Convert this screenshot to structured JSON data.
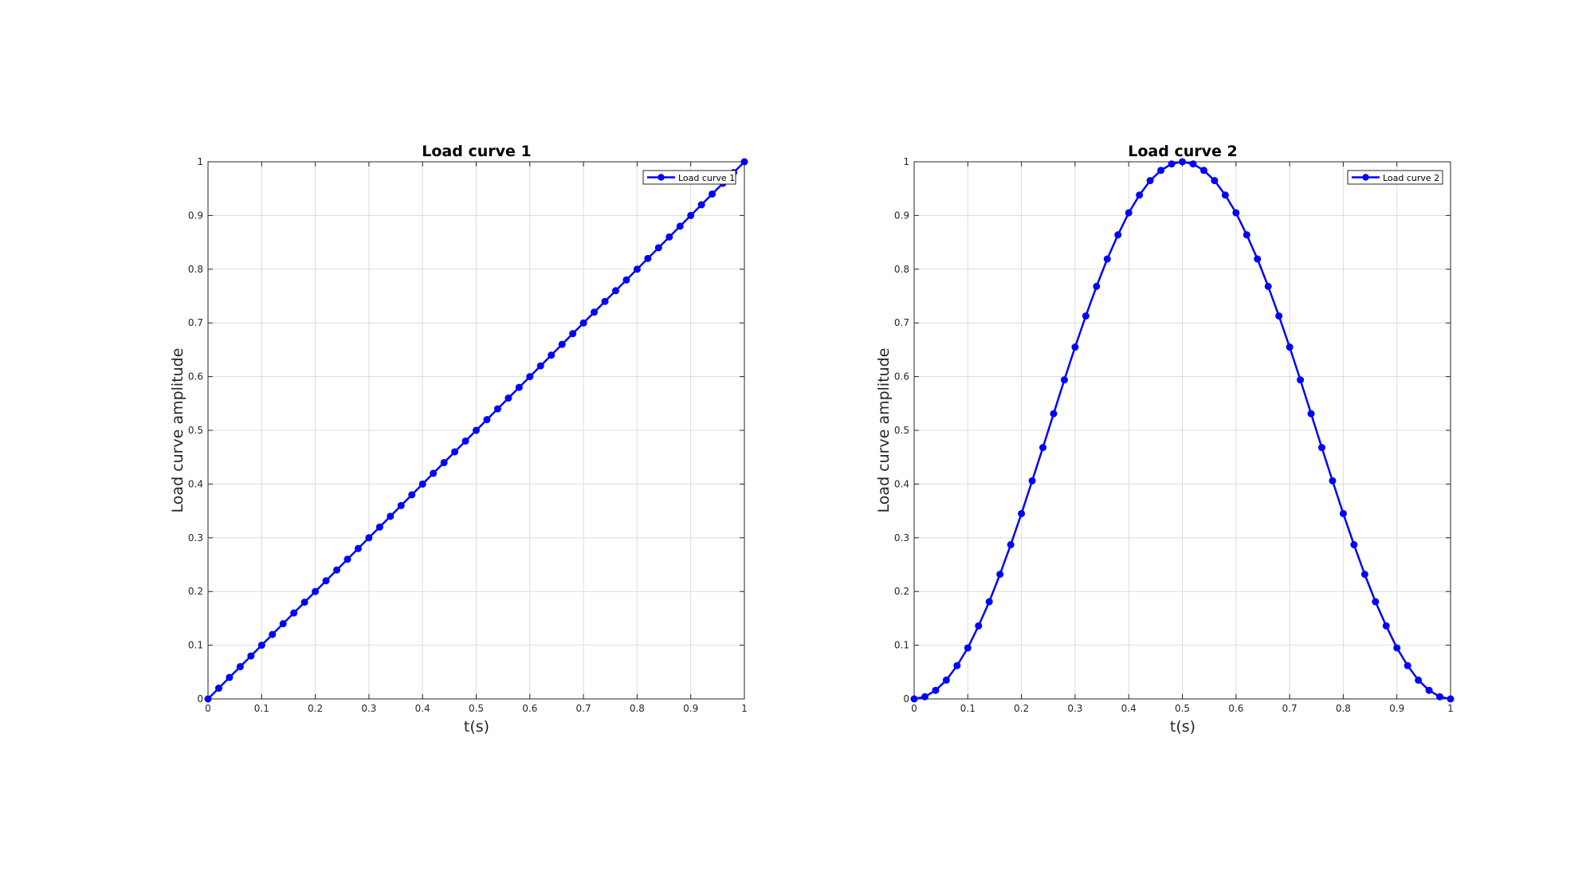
{
  "chart_data": [
    {
      "type": "line",
      "title": "Load curve 1",
      "xlabel": "t(s)",
      "ylabel": "Load curve amplitude",
      "xlim": [
        0,
        1
      ],
      "ylim": [
        0,
        1
      ],
      "xticks": [
        "0",
        "0.1",
        "0.2",
        "0.3",
        "0.4",
        "0.5",
        "0.6",
        "0.7",
        "0.8",
        "0.9",
        "1"
      ],
      "yticks": [
        "0",
        "0.1",
        "0.2",
        "0.3",
        "0.4",
        "0.5",
        "0.6",
        "0.7",
        "0.8",
        "0.9",
        "1"
      ],
      "grid": true,
      "legend_position": "top-right",
      "series": [
        {
          "name": "Load curve 1",
          "color": "#0000ff",
          "marker": "circle",
          "x": [
            0,
            0.02,
            0.04,
            0.06,
            0.08,
            0.1,
            0.12,
            0.14,
            0.16,
            0.18,
            0.2,
            0.22,
            0.24,
            0.26,
            0.28,
            0.3,
            0.32,
            0.34,
            0.36,
            0.38,
            0.4,
            0.42,
            0.44,
            0.46,
            0.48,
            0.5,
            0.52,
            0.54,
            0.56,
            0.58,
            0.6,
            0.62,
            0.64,
            0.66,
            0.68,
            0.7,
            0.72,
            0.74,
            0.76,
            0.78,
            0.8,
            0.82,
            0.84,
            0.86,
            0.88,
            0.9,
            0.92,
            0.94,
            0.96,
            0.98,
            1
          ],
          "y": [
            0,
            0.02,
            0.04,
            0.06,
            0.08,
            0.1,
            0.12,
            0.14,
            0.16,
            0.18,
            0.2,
            0.22,
            0.24,
            0.26,
            0.28,
            0.3,
            0.32,
            0.34,
            0.36,
            0.38,
            0.4,
            0.42,
            0.44,
            0.46,
            0.48,
            0.5,
            0.52,
            0.54,
            0.56,
            0.58,
            0.6,
            0.62,
            0.64,
            0.66,
            0.68,
            0.7,
            0.72,
            0.74,
            0.76,
            0.78,
            0.8,
            0.82,
            0.84,
            0.86,
            0.88,
            0.9,
            0.92,
            0.94,
            0.96,
            0.98,
            1
          ]
        }
      ]
    },
    {
      "type": "line",
      "title": "Load curve 2",
      "xlabel": "t(s)",
      "ylabel": "Load curve amplitude",
      "xlim": [
        0,
        1
      ],
      "ylim": [
        0,
        1
      ],
      "xticks": [
        "0",
        "0.1",
        "0.2",
        "0.3",
        "0.4",
        "0.5",
        "0.6",
        "0.7",
        "0.8",
        "0.9",
        "1"
      ],
      "yticks": [
        "0",
        "0.1",
        "0.2",
        "0.3",
        "0.4",
        "0.5",
        "0.6",
        "0.7",
        "0.8",
        "0.9",
        "1"
      ],
      "grid": true,
      "legend_position": "top-right",
      "series": [
        {
          "name": "Load curve 2",
          "color": "#0000ff",
          "marker": "circle",
          "x": [
            0,
            0.02,
            0.04,
            0.06,
            0.08,
            0.1,
            0.12,
            0.14,
            0.16,
            0.18,
            0.2,
            0.22,
            0.24,
            0.26,
            0.28,
            0.3,
            0.32,
            0.34,
            0.36,
            0.38,
            0.4,
            0.42,
            0.44,
            0.46,
            0.48,
            0.5,
            0.52,
            0.54,
            0.56,
            0.58,
            0.6,
            0.62,
            0.64,
            0.66,
            0.68,
            0.7,
            0.72,
            0.74,
            0.76,
            0.78,
            0.8,
            0.82,
            0.84,
            0.86,
            0.88,
            0.9,
            0.92,
            0.94,
            0.96,
            0.98,
            1
          ],
          "y": [
            0,
            0.004,
            0.016,
            0.035,
            0.062,
            0.095,
            0.136,
            0.181,
            0.232,
            0.287,
            0.345,
            0.406,
            0.468,
            0.531,
            0.594,
            0.655,
            0.713,
            0.768,
            0.819,
            0.864,
            0.905,
            0.938,
            0.965,
            0.984,
            0.996,
            1,
            0.996,
            0.984,
            0.965,
            0.938,
            0.905,
            0.864,
            0.819,
            0.768,
            0.713,
            0.655,
            0.594,
            0.531,
            0.468,
            0.406,
            0.345,
            0.287,
            0.232,
            0.181,
            0.136,
            0.095,
            0.062,
            0.035,
            0.016,
            0.004,
            0
          ]
        }
      ]
    }
  ]
}
